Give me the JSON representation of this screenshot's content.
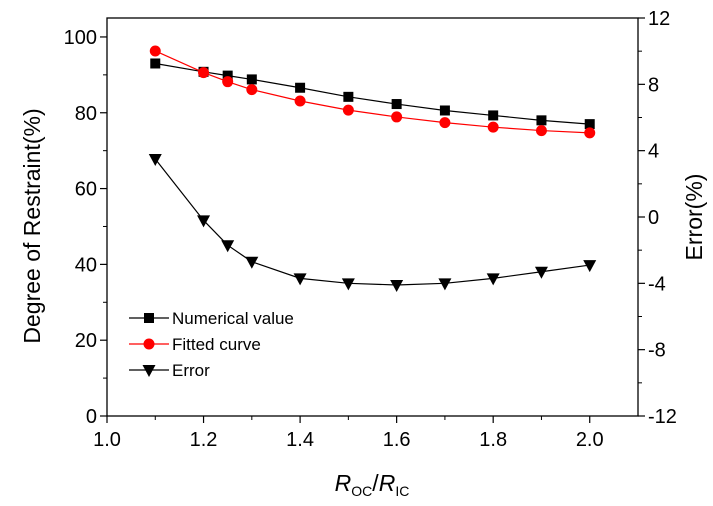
{
  "chart_data": {
    "type": "line",
    "title": "",
    "xlabel": {
      "main": "R",
      "sub1": "OC",
      "sep": "/",
      "main2": "R",
      "sub2": "IC"
    },
    "ylabel_left": "Degree of Restraint(%)",
    "ylabel_right": "Error(%)",
    "xlim": [
      1.0,
      2.1
    ],
    "ylim_left": [
      0,
      105
    ],
    "ylim_right": [
      -12,
      12
    ],
    "x_ticks": [
      "1.0",
      "1.2",
      "1.4",
      "1.6",
      "1.8",
      "2.0"
    ],
    "x_tick_values": [
      1.0,
      1.2,
      1.4,
      1.6,
      1.8,
      2.0
    ],
    "y_left_ticks": [
      "0",
      "20",
      "40",
      "60",
      "80",
      "100"
    ],
    "y_left_tick_values": [
      0,
      20,
      40,
      60,
      80,
      100
    ],
    "y_right_ticks": [
      "-12",
      "-8",
      "-4",
      "0",
      "4",
      "8",
      "12"
    ],
    "y_right_tick_values": [
      -12,
      -8,
      -4,
      0,
      4,
      8,
      12
    ],
    "grid": false,
    "legend_position": "bottom-left",
    "x": [
      1.1,
      1.2,
      1.25,
      1.3,
      1.4,
      1.5,
      1.6,
      1.7,
      1.8,
      1.9,
      2.0
    ],
    "series": [
      {
        "name": "Numerical value",
        "axis": "left",
        "marker": "square",
        "color": "#000000",
        "values": [
          93.0,
          90.8,
          89.8,
          88.8,
          86.6,
          84.2,
          82.3,
          80.6,
          79.3,
          78.0,
          77.0
        ]
      },
      {
        "name": "Fitted curve",
        "axis": "left",
        "marker": "circle",
        "color": "#ff0000",
        "values": [
          96.3,
          90.6,
          88.2,
          86.1,
          83.1,
          80.7,
          78.9,
          77.4,
          76.2,
          75.3,
          74.7
        ]
      },
      {
        "name": "Error",
        "axis": "right",
        "marker": "triangle-down",
        "color": "#000000",
        "values": [
          3.5,
          -0.2,
          -1.7,
          -2.7,
          -3.7,
          -4.0,
          -4.1,
          -4.0,
          -3.7,
          -3.3,
          -2.9
        ]
      }
    ]
  }
}
